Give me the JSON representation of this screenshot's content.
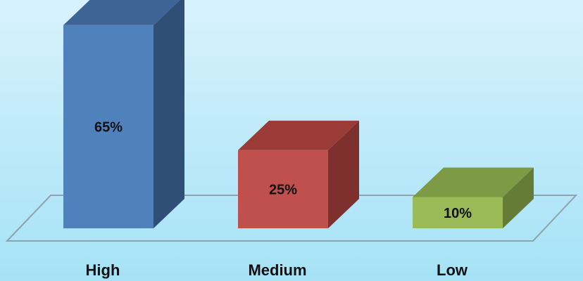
{
  "chart_data": {
    "type": "bar",
    "style": "3d-column",
    "categories": [
      "High",
      "Medium",
      "Low"
    ],
    "values": [
      65,
      25,
      10
    ],
    "labels": [
      "65%",
      "25%",
      "10%"
    ],
    "unit": "%",
    "ylim": [
      0,
      70
    ],
    "title": "",
    "xlabel": "",
    "ylabel": "",
    "grid": false,
    "legend": "none",
    "colors": {
      "bars": [
        {
          "front": "#4F81BD",
          "top": "#3E6496",
          "side": "#304F77"
        },
        {
          "front": "#C0504D",
          "top": "#9B3B38",
          "side": "#7E302E"
        },
        {
          "front": "#9BBB59",
          "top": "#7D9A45",
          "side": "#647C36"
        }
      ],
      "background_top": "#D8F2FD",
      "background_bottom": "#A5E2F6",
      "floor_line": "#8FA2B0"
    }
  }
}
